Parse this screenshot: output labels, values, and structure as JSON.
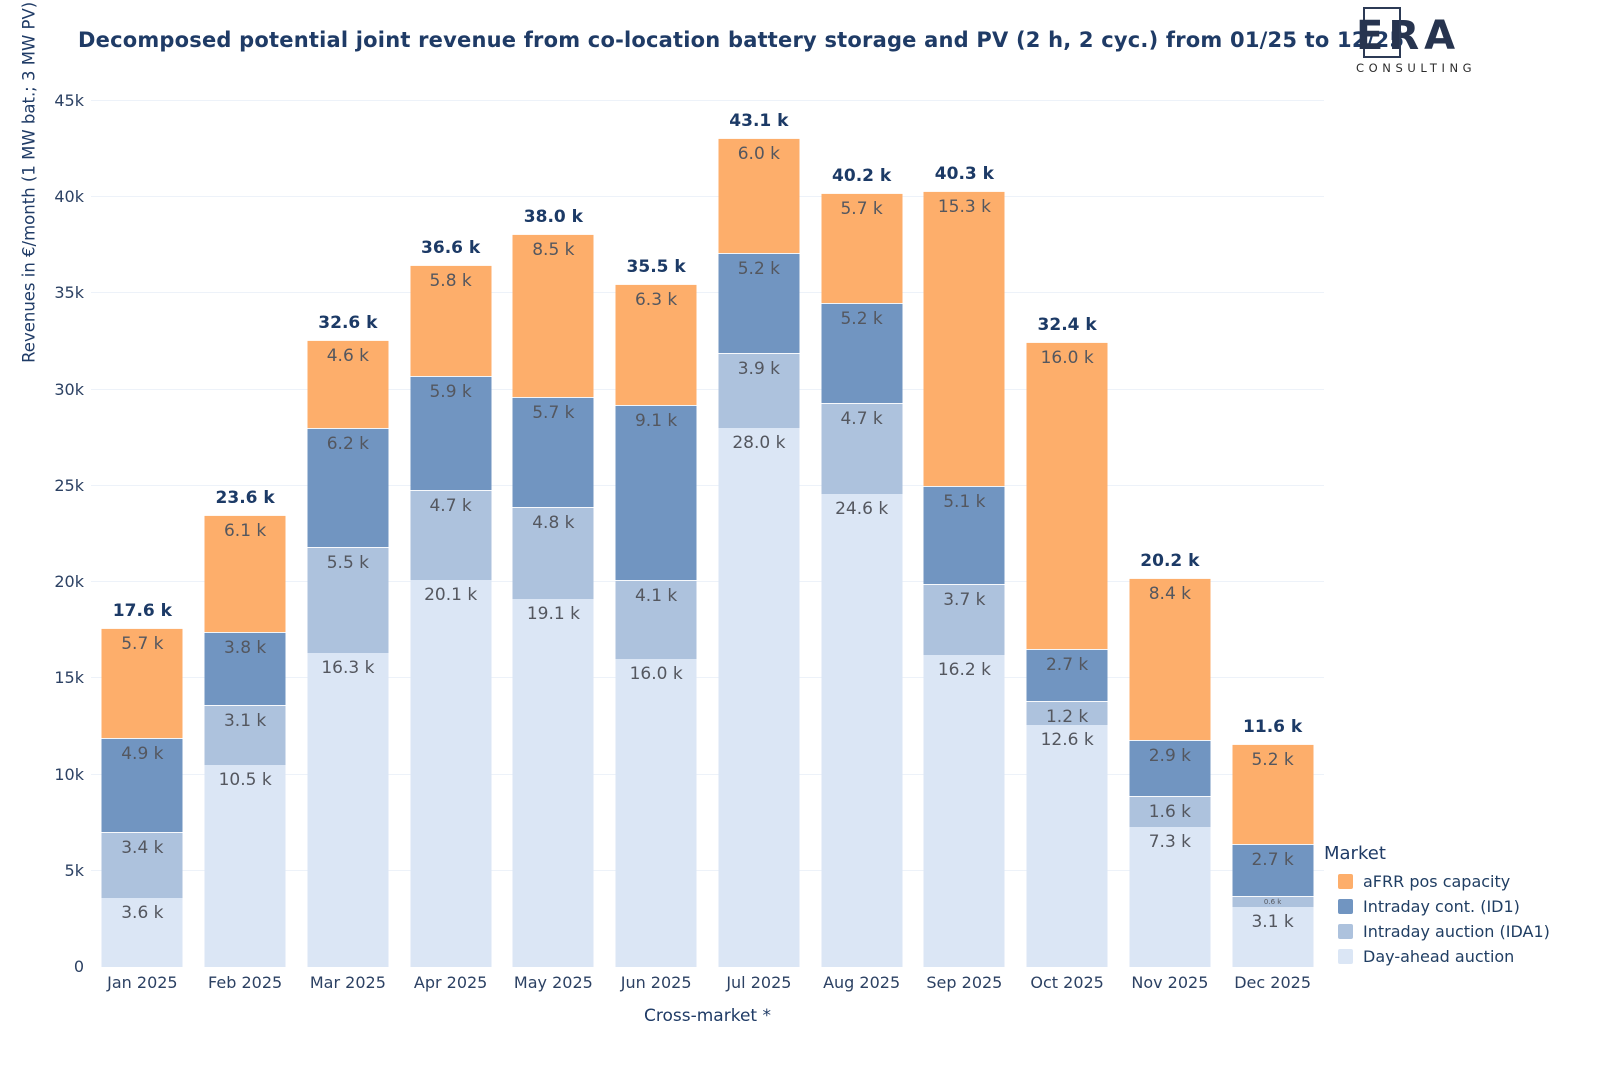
{
  "title": "Decomposed potential joint revenue from co-location battery storage and PV (2 h, 2 cyc.) from 01/25 to 12/25",
  "logo": {
    "letter_e": "E",
    "letters_ra": "RA",
    "subtitle": "CONSULTING"
  },
  "legend": {
    "title": "Market",
    "items": [
      {
        "label": "aFRR pos capacity",
        "color": "#fdae6b"
      },
      {
        "label": "Intraday cont. (ID1)",
        "color": "#7195c1"
      },
      {
        "label": "Intraday auction (IDA1)",
        "color": "#adc2dd"
      },
      {
        "label": "Day-ahead auction",
        "color": "#dbe6f5"
      }
    ]
  },
  "chart_data": {
    "type": "bar",
    "stacked": true,
    "title": "Decomposed potential joint revenue from co-location battery storage and PV (2 h, 2 cyc.) from 01/25 to 12/25",
    "xlabel": "Cross-market *",
    "ylabel": "Revenues in €/month (1 MW bat.; 3 MW PV)",
    "ylim_k": [
      0,
      45
    ],
    "yticks": [
      "0",
      "5k",
      "10k",
      "15k",
      "20k",
      "25k",
      "30k",
      "35k",
      "40k",
      "45k"
    ],
    "grid": true,
    "legend_position": "bottom-right",
    "categories": [
      "Jan 2025",
      "Feb 2025",
      "Mar 2025",
      "Apr 2025",
      "May 2025",
      "Jun 2025",
      "Jul 2025",
      "Aug 2025",
      "Sep 2025",
      "Oct 2025",
      "Nov 2025",
      "Dec 2025"
    ],
    "unit": "k €/month",
    "series": [
      {
        "name": "Day-ahead auction",
        "color": "#dbe6f5",
        "values_k": [
          3.6,
          10.5,
          16.3,
          20.1,
          19.1,
          16.0,
          28.0,
          24.6,
          16.2,
          12.6,
          7.3,
          3.1
        ]
      },
      {
        "name": "Intraday auction (IDA1)",
        "color": "#adc2dd",
        "values_k": [
          3.4,
          3.1,
          5.5,
          4.7,
          4.8,
          4.1,
          3.9,
          4.7,
          3.7,
          1.2,
          1.6,
          0.6
        ]
      },
      {
        "name": "Intraday cont. (ID1)",
        "color": "#7195c1",
        "values_k": [
          4.9,
          3.8,
          6.2,
          5.9,
          5.7,
          9.1,
          5.2,
          5.2,
          5.1,
          2.7,
          2.9,
          2.7
        ]
      },
      {
        "name": "aFRR pos capacity",
        "color": "#fdae6b",
        "values_k": [
          5.7,
          6.1,
          4.6,
          5.8,
          8.5,
          6.3,
          6.0,
          5.7,
          15.3,
          16.0,
          8.4,
          5.2
        ]
      }
    ],
    "totals_k": [
      17.6,
      23.6,
      32.6,
      36.6,
      38.0,
      35.5,
      43.1,
      40.2,
      40.3,
      32.4,
      20.2,
      11.6
    ],
    "label_suffix": " k"
  }
}
